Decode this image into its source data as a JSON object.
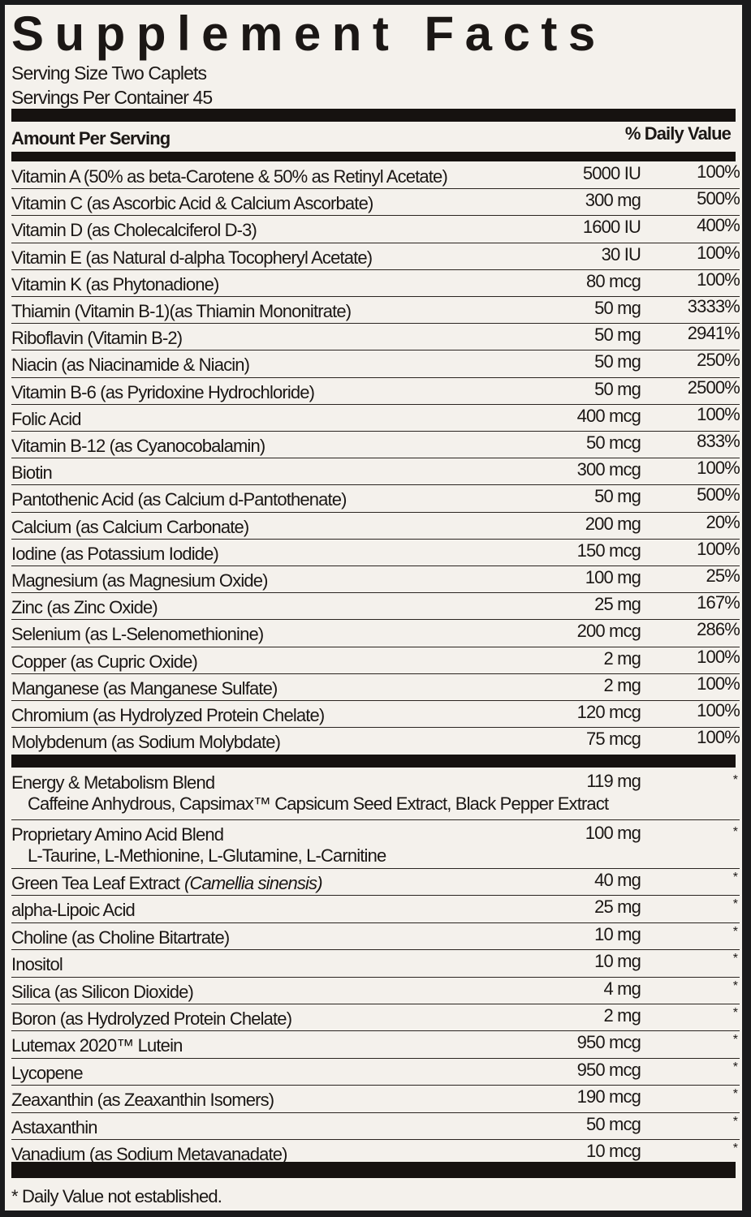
{
  "title": "Supplement Facts",
  "serving_size": "Serving Size Two Caplets",
  "servings_per_container": "Servings Per Container 45",
  "header": {
    "amount_label": "Amount Per Serving",
    "dv_label": "% Daily Value"
  },
  "vitamins": [
    {
      "name": "Vitamin A (50% as beta-Carotene & 50% as Retinyl Acetate)",
      "amount": "5000 IU",
      "dv": "100%"
    },
    {
      "name": "Vitamin C (as Ascorbic Acid & Calcium Ascorbate)",
      "amount": "300 mg",
      "dv": "500%"
    },
    {
      "name": "Vitamin D (as Cholecalciferol D-3)",
      "amount": "1600 IU",
      "dv": "400%"
    },
    {
      "name": "Vitamin E (as Natural d-alpha Tocopheryl Acetate)",
      "amount": "30 IU",
      "dv": "100%"
    },
    {
      "name": "Vitamin K (as Phytonadione)",
      "amount": "80 mcg",
      "dv": "100%"
    },
    {
      "name": "Thiamin (Vitamin B-1)(as Thiamin Mononitrate)",
      "amount": "50 mg",
      "dv": "3333%"
    },
    {
      "name": "Riboflavin (Vitamin B-2)",
      "amount": "50 mg",
      "dv": "2941%"
    },
    {
      "name": "Niacin (as Niacinamide & Niacin)",
      "amount": "50 mg",
      "dv": "250%"
    },
    {
      "name": "Vitamin B-6 (as Pyridoxine Hydrochloride)",
      "amount": "50 mg",
      "dv": "2500%"
    },
    {
      "name": "Folic Acid",
      "amount": "400 mcg",
      "dv": "100%"
    },
    {
      "name": "Vitamin B-12 (as Cyanocobalamin)",
      "amount": "50 mcg",
      "dv": "833%"
    },
    {
      "name": "Biotin",
      "amount": "300 mcg",
      "dv": "100%"
    },
    {
      "name": "Pantothenic Acid (as Calcium d-Pantothenate)",
      "amount": "50 mg",
      "dv": "500%"
    },
    {
      "name": "Calcium (as Calcium Carbonate)",
      "amount": "200 mg",
      "dv": "20%"
    },
    {
      "name": "Iodine (as Potassium Iodide)",
      "amount": "150 mcg",
      "dv": "100%"
    },
    {
      "name": "Magnesium (as Magnesium Oxide)",
      "amount": "100 mg",
      "dv": "25%"
    },
    {
      "name": "Zinc (as Zinc Oxide)",
      "amount": "25 mg",
      "dv": "167%"
    },
    {
      "name": "Selenium (as L-Selenomethionine)",
      "amount": "200 mcg",
      "dv": "286%"
    },
    {
      "name": "Copper (as Cupric Oxide)",
      "amount": "2 mg",
      "dv": "100%"
    },
    {
      "name": "Manganese (as Manganese Sulfate)",
      "amount": "2 mg",
      "dv": "100%"
    },
    {
      "name": "Chromium (as Hydrolyzed Protein Chelate)",
      "amount": "120 mcg",
      "dv": "100%"
    },
    {
      "name": "Molybdenum (as Sodium Molybdate)",
      "amount": "75 mcg",
      "dv": "100%"
    }
  ],
  "blends": [
    {
      "name": "Energy & Metabolism Blend",
      "detail": "Caffeine Anhydrous, Capsimax™ Capsicum Seed Extract, Black Pepper Extract",
      "amount": "119 mg",
      "dv": "*"
    },
    {
      "name": "Proprietary Amino Acid Blend",
      "detail": "L-Taurine, L-Methionine, L-Glutamine, L-Carnitine",
      "amount": "100 mg",
      "dv": "*"
    }
  ],
  "others": [
    {
      "name": "Green Tea Leaf Extract",
      "italic": "(Camellia sinensis)",
      "amount": "40 mg",
      "dv": "*"
    },
    {
      "name": "alpha-Lipoic Acid",
      "amount": "25 mg",
      "dv": "*"
    },
    {
      "name": "Choline (as Choline Bitartrate)",
      "amount": "10 mg",
      "dv": "*"
    },
    {
      "name": "Inositol",
      "amount": "10 mg",
      "dv": "*"
    },
    {
      "name": "Silica (as Silicon Dioxide)",
      "amount": "4 mg",
      "dv": "*"
    },
    {
      "name": "Boron (as Hydrolyzed Protein Chelate)",
      "amount": "2 mg",
      "dv": "*"
    },
    {
      "name": "Lutemax 2020™ Lutein",
      "amount": "950 mcg",
      "dv": "*"
    },
    {
      "name": "Lycopene",
      "amount": "950 mcg",
      "dv": "*"
    },
    {
      "name": "Zeaxanthin (as Zeaxanthin Isomers)",
      "amount": "190 mcg",
      "dv": "*"
    },
    {
      "name": "Astaxanthin",
      "amount": "50 mcg",
      "dv": "*"
    },
    {
      "name": "Vanadium (as Sodium Metavanadate)",
      "amount": "10 mcg",
      "dv": "*"
    }
  ],
  "footnote": "* Daily Value not established."
}
